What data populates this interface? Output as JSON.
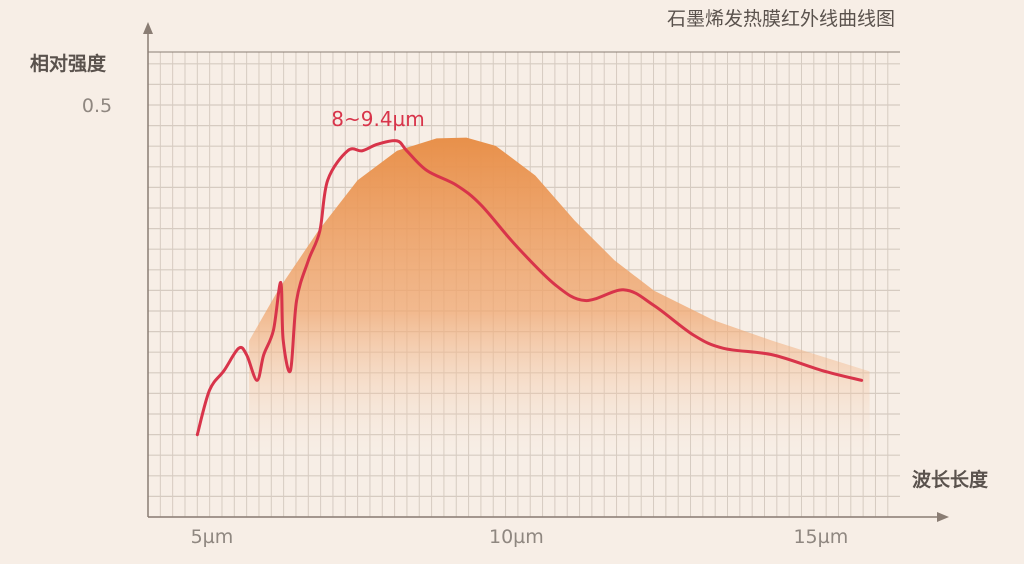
{
  "chart_data": {
    "type": "area",
    "title": "石墨烯发热膜红外线曲线图",
    "xlabel": "波长长度",
    "ylabel": "相对强度",
    "x_unit": "µm",
    "xlim": [
      3.95,
      16.3
    ],
    "ylim": [
      0,
      0.565
    ],
    "x_ticks": [
      5,
      10,
      15
    ],
    "x_tick_labels": [
      "5µm",
      "10µm",
      "15µm"
    ],
    "y_ticks": [
      0.5
    ],
    "y_tick_labels": [
      "0.5"
    ],
    "grid": true,
    "annotation": "8~9.4µm",
    "colors": {
      "line": "#d8344a",
      "area": "#e8904a",
      "grid": "#d6cbc1",
      "axis": "#8a7d74",
      "background": "#f7eee6"
    },
    "series": [
      {
        "type": "line",
        "x": [
          4.76,
          4.96,
          5.2,
          5.44,
          5.57,
          5.74,
          5.85,
          6.01,
          6.13,
          6.17,
          6.29,
          6.39,
          6.58,
          6.77,
          6.9,
          7.23,
          7.47,
          7.72,
          8.04,
          8.2,
          8.53,
          9.02,
          9.42,
          9.99,
          10.64,
          11.13,
          11.77,
          12.26,
          12.91,
          13.4,
          14.21,
          15.02,
          15.67
        ],
        "y": [
          0.1,
          0.154,
          0.178,
          0.205,
          0.197,
          0.166,
          0.197,
          0.227,
          0.285,
          0.215,
          0.178,
          0.263,
          0.311,
          0.347,
          0.409,
          0.445,
          0.445,
          0.453,
          0.457,
          0.445,
          0.421,
          0.403,
          0.379,
          0.33,
          0.282,
          0.263,
          0.276,
          0.257,
          0.221,
          0.205,
          0.197,
          0.178,
          0.166
        ]
      },
      {
        "type": "area",
        "x": [
          5.61,
          6.09,
          6.74,
          7.39,
          8.04,
          8.69,
          9.18,
          9.66,
          10.31,
          10.96,
          11.61,
          12.26,
          13.24,
          14.21,
          15.02,
          15.8
        ],
        "y": [
          0.214,
          0.276,
          0.347,
          0.409,
          0.445,
          0.46,
          0.461,
          0.451,
          0.415,
          0.36,
          0.312,
          0.275,
          0.239,
          0.214,
          0.195,
          0.177
        ]
      }
    ]
  }
}
